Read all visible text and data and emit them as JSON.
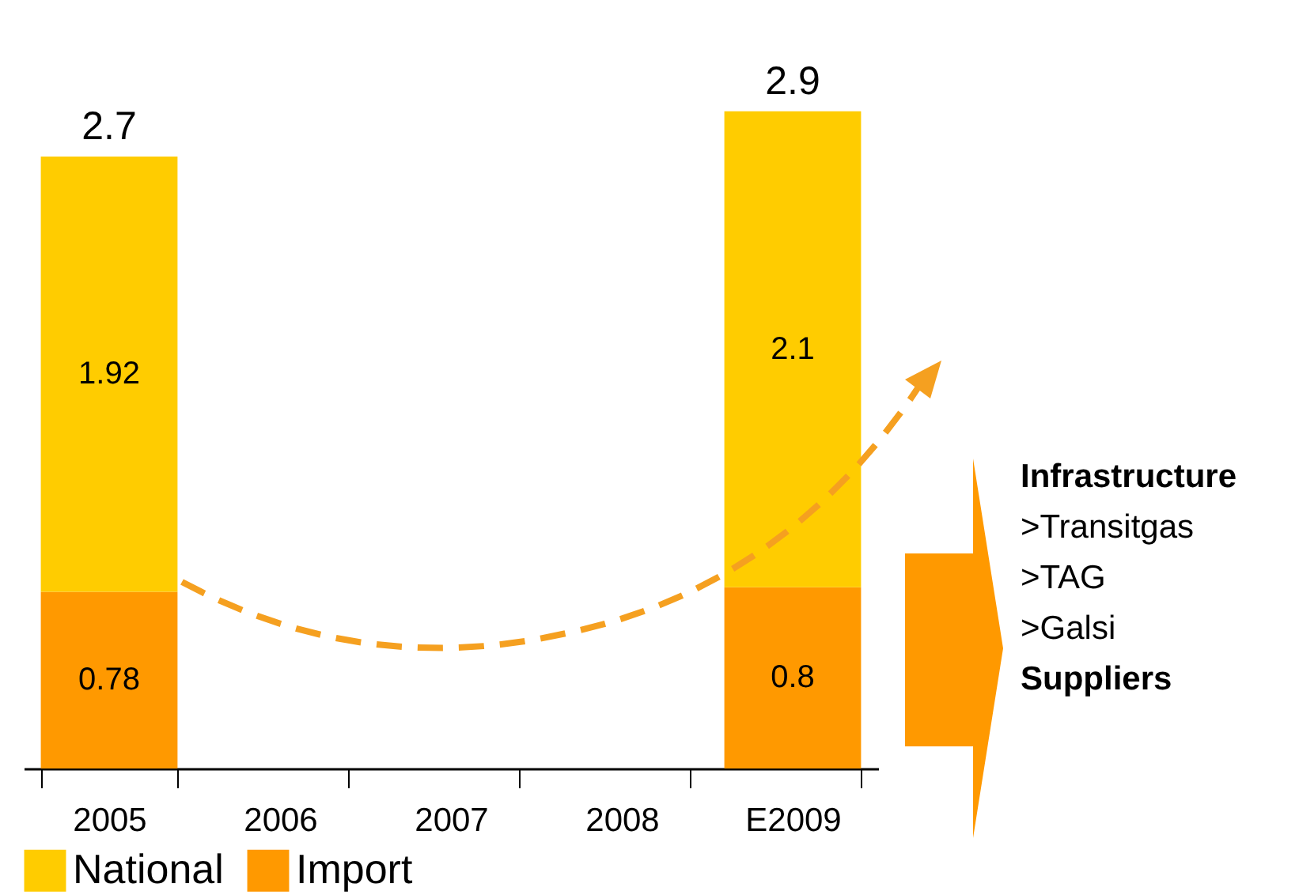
{
  "chart_data": {
    "type": "bar",
    "stacked": true,
    "data_labels": true,
    "legend": "bottom",
    "grid": false,
    "categories": [
      "2005",
      "2006",
      "2007",
      "2008",
      "E2009"
    ],
    "series": [
      {
        "name": "Import",
        "color": "#ff9900",
        "values": [
          0.78,
          null,
          null,
          null,
          0.8
        ]
      },
      {
        "name": "National",
        "color": "#ffcc00",
        "values": [
          1.92,
          null,
          null,
          null,
          2.1
        ]
      }
    ],
    "totals": [
      "2.7",
      null,
      null,
      null,
      "2.9"
    ],
    "annotations": [
      "Infrastructure",
      ">Transitgas",
      ">TAG",
      ">Galsi",
      "Suppliers"
    ]
  }
}
